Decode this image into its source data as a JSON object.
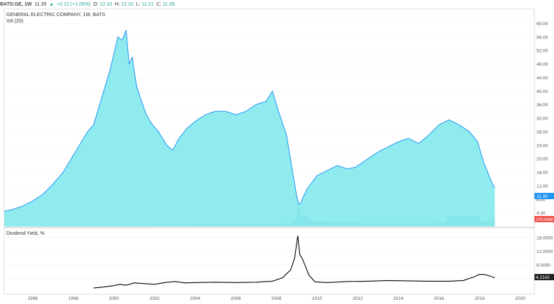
{
  "header": {
    "symbol": "BATS:GE, 1W",
    "last": "11.39",
    "change": "+0.12 (+1.06%)",
    "open_label": "O:",
    "open": "12.10",
    "high_label": "H:",
    "high": "12.10",
    "low_label": "L:",
    "low": "11.21",
    "close_label": "C:",
    "close": "11.39"
  },
  "price_pane": {
    "title": "GENERAL ELECTRIC COMPANY, 1W, BATS",
    "volume_label": "Vol (20)",
    "price_badge": "11.39",
    "volume_badge": "275.005M"
  },
  "yield_pane": {
    "title": "Dividend Yield, %",
    "value_badge": "4.2142"
  },
  "chart_data": [
    {
      "type": "area",
      "title": "GENERAL ELECTRIC COMPANY, 1W, BATS",
      "y_ticks": [
        "4.00",
        "8.00",
        "12.00",
        "16.00",
        "20.00",
        "24.00",
        "28.00",
        "32.00",
        "36.00",
        "40.00",
        "44.00",
        "48.00",
        "52.00",
        "56.00",
        "60.00"
      ],
      "ylim": [
        0,
        64
      ],
      "x_ticks": [
        "1996",
        "1998",
        "2000",
        "2002",
        "2004",
        "2006",
        "2008",
        "2010",
        "2012",
        "2014",
        "2016",
        "2018",
        "2020"
      ],
      "xlim": [
        1994.6,
        2020.7
      ],
      "line_color": "#2196f3",
      "fill_color": "#7de8ec",
      "series": [
        {
          "x": [
            1994.6,
            1995.0,
            1995.5,
            1996.0,
            1996.5,
            1997.0,
            1997.5,
            1997.9,
            1998.3,
            1998.7,
            1999.0,
            1999.4,
            1999.8,
            2000.0,
            2000.2,
            2000.4,
            2000.6,
            2000.75,
            2000.9,
            2001.1,
            2001.3,
            2001.6,
            2001.9,
            2002.2,
            2002.6,
            2002.9,
            2003.2,
            2003.6,
            2004.0,
            2004.5,
            2005.0,
            2005.5,
            2006.0,
            2006.5,
            2007.0,
            2007.5,
            2007.8,
            2008.1,
            2008.5,
            2008.8,
            2009.0,
            2009.1,
            2009.2,
            2009.5,
            2010.0,
            2010.5,
            2011.0,
            2011.5,
            2011.9,
            2012.5,
            2013.0,
            2013.5,
            2014.0,
            2014.5,
            2015.0,
            2015.5,
            2016.0,
            2016.5,
            2017.0,
            2017.5,
            2017.9,
            2018.2,
            2018.6,
            2018.75
          ],
          "values": [
            4.5,
            5.0,
            6.0,
            7.5,
            9.5,
            12.5,
            16.0,
            20.0,
            24.0,
            28.0,
            30.0,
            38.0,
            46.0,
            51.0,
            56.0,
            55.0,
            58.0,
            48.0,
            50.0,
            42.0,
            38.0,
            33.0,
            30.0,
            28.0,
            24.0,
            22.5,
            26.0,
            29.0,
            31.0,
            33.0,
            34.0,
            34.0,
            33.0,
            34.0,
            36.0,
            37.0,
            40.0,
            34.0,
            27.0,
            16.0,
            9.0,
            6.5,
            7.0,
            11.0,
            15.0,
            16.5,
            18.0,
            17.0,
            17.5,
            20.0,
            22.0,
            23.5,
            25.0,
            26.0,
            24.5,
            27.0,
            30.0,
            31.5,
            30.0,
            28.0,
            25.0,
            19.0,
            13.0,
            11.39
          ]
        }
      ],
      "volume": {
        "name": "Vol (20)",
        "x": [
          1994.6,
          1996.0,
          1998.0,
          2000.0,
          2002.0,
          2004.0,
          2006.0,
          2008.0,
          2008.8,
          2009.0,
          2009.2,
          2009.6,
          2010.5,
          2012.0,
          2014.0,
          2016.0,
          2016.4,
          2018.0,
          2018.6,
          2018.75
        ],
        "values": [
          0.2,
          0.3,
          0.4,
          0.5,
          0.6,
          0.7,
          0.8,
          1.2,
          2.5,
          7.0,
          4.0,
          2.0,
          1.5,
          1.2,
          1.2,
          1.5,
          4.0,
          2.0,
          3.5,
          2.75
        ]
      }
    },
    {
      "type": "line",
      "title": "Dividend Yield, %",
      "y_ticks": [
        "4.0000",
        "8.0000",
        "12.0000",
        "16.0000"
      ],
      "ylim": [
        0,
        18
      ],
      "line_color": "#000000",
      "series": [
        {
          "x": [
            1999.0,
            1999.5,
            2000.0,
            2000.3,
            2000.6,
            2001.0,
            2001.5,
            2002.0,
            2002.5,
            2003.0,
            2003.5,
            2004.0,
            2005.0,
            2006.0,
            2007.0,
            2007.8,
            2008.3,
            2008.7,
            2008.9,
            2009.05,
            2009.15,
            2009.3,
            2009.6,
            2009.9,
            2010.5,
            2011.5,
            2012.5,
            2013.5,
            2014.5,
            2015.5,
            2016.5,
            2017.2,
            2017.7,
            2018.0,
            2018.3,
            2018.6,
            2018.75
          ],
          "values": [
            1.2,
            1.5,
            1.9,
            2.3,
            2.0,
            2.7,
            2.5,
            2.3,
            2.8,
            3.1,
            2.7,
            2.8,
            2.9,
            2.8,
            2.9,
            3.2,
            4.2,
            6.5,
            10.0,
            16.5,
            11.0,
            9.5,
            5.0,
            3.0,
            2.8,
            3.1,
            3.2,
            3.4,
            3.3,
            3.2,
            3.2,
            3.4,
            4.4,
            5.2,
            5.1,
            4.5,
            4.2142
          ]
        }
      ]
    }
  ]
}
